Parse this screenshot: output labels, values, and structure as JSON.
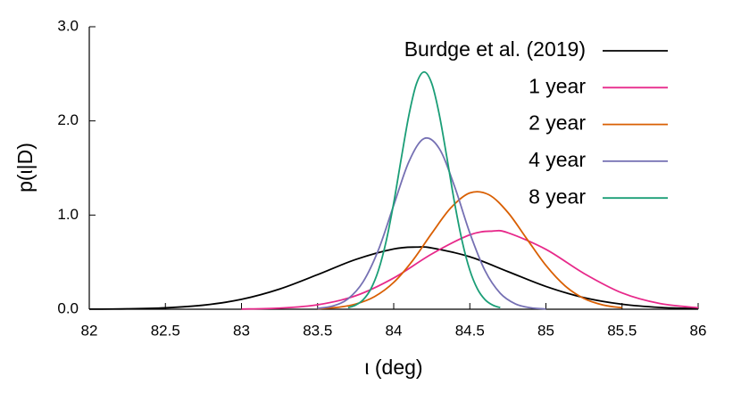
{
  "chart_data": {
    "type": "line",
    "x_label": "ι (deg)",
    "y_label": "p(ι|D)",
    "xlim": [
      82,
      86
    ],
    "ylim": [
      0,
      3
    ],
    "xticks": [
      82,
      82.5,
      83,
      83.5,
      84,
      84.5,
      85,
      85.5,
      86
    ],
    "yticks": [
      {
        "value": 0,
        "label": "0.0"
      },
      {
        "value": 1,
        "label": "1.0"
      },
      {
        "value": 2,
        "label": "2.0"
      },
      {
        "value": 3,
        "label": "3.0"
      }
    ],
    "legend": "top-right",
    "series": [
      {
        "name": "Burdge et al. (2019)",
        "color": "#000000",
        "x": [
          82,
          82.25,
          82.5,
          82.75,
          83,
          83.25,
          83.5,
          83.75,
          84,
          84.15,
          84.25,
          84.5,
          84.75,
          85,
          85.25,
          85.5,
          85.75,
          86
        ],
        "values": [
          0.001,
          0.004,
          0.015,
          0.043,
          0.105,
          0.214,
          0.367,
          0.528,
          0.64,
          0.66,
          0.651,
          0.557,
          0.4,
          0.242,
          0.123,
          0.053,
          0.019,
          0.006
        ]
      },
      {
        "name": "1 year",
        "color": "#e7298a",
        "x": [
          83,
          83.25,
          83.5,
          83.75,
          84,
          84.25,
          84.5,
          84.65,
          84.75,
          85,
          85.25,
          85.5,
          85.75,
          86
        ],
        "values": [
          0.002,
          0.012,
          0.047,
          0.143,
          0.332,
          0.587,
          0.79,
          0.83,
          0.812,
          0.636,
          0.38,
          0.173,
          0.06,
          0.016
        ]
      },
      {
        "name": "2 year",
        "color": "#d95f02",
        "x": [
          83.5,
          83.625,
          83.75,
          83.875,
          84,
          84.125,
          84.25,
          84.375,
          84.5,
          84.625,
          84.75,
          84.875,
          85,
          85.125,
          85.25,
          85.375,
          85.5
        ],
        "values": [
          0.006,
          0.019,
          0.055,
          0.135,
          0.285,
          0.518,
          0.806,
          1.076,
          1.235,
          1.216,
          1.028,
          0.746,
          0.465,
          0.249,
          0.114,
          0.045,
          0.015
        ]
      },
      {
        "name": "4 year",
        "color": "#7570b3",
        "x": [
          83.5,
          83.6,
          83.7,
          83.8,
          83.9,
          84.0,
          84.1,
          84.2,
          84.3,
          84.4,
          84.5,
          84.6,
          84.7,
          84.8,
          84.9,
          85.0
        ],
        "values": [
          0.009,
          0.034,
          0.111,
          0.294,
          0.632,
          1.104,
          1.568,
          1.813,
          1.704,
          1.303,
          0.81,
          0.409,
          0.169,
          0.056,
          0.015,
          0.003
        ]
      },
      {
        "name": "8 year",
        "color": "#1b9e77",
        "x": [
          83.7,
          83.75,
          83.8,
          83.85,
          83.9,
          83.95,
          84,
          84.05,
          84.1,
          84.15,
          84.2,
          84.25,
          84.3,
          84.35,
          84.4,
          84.45,
          84.5,
          84.55,
          84.6,
          84.65,
          84.7
        ],
        "values": [
          0.017,
          0.044,
          0.102,
          0.216,
          0.415,
          0.72,
          1.129,
          1.605,
          2.063,
          2.397,
          2.52,
          2.397,
          2.063,
          1.605,
          1.129,
          0.72,
          0.415,
          0.216,
          0.102,
          0.044,
          0.017
        ]
      }
    ]
  }
}
